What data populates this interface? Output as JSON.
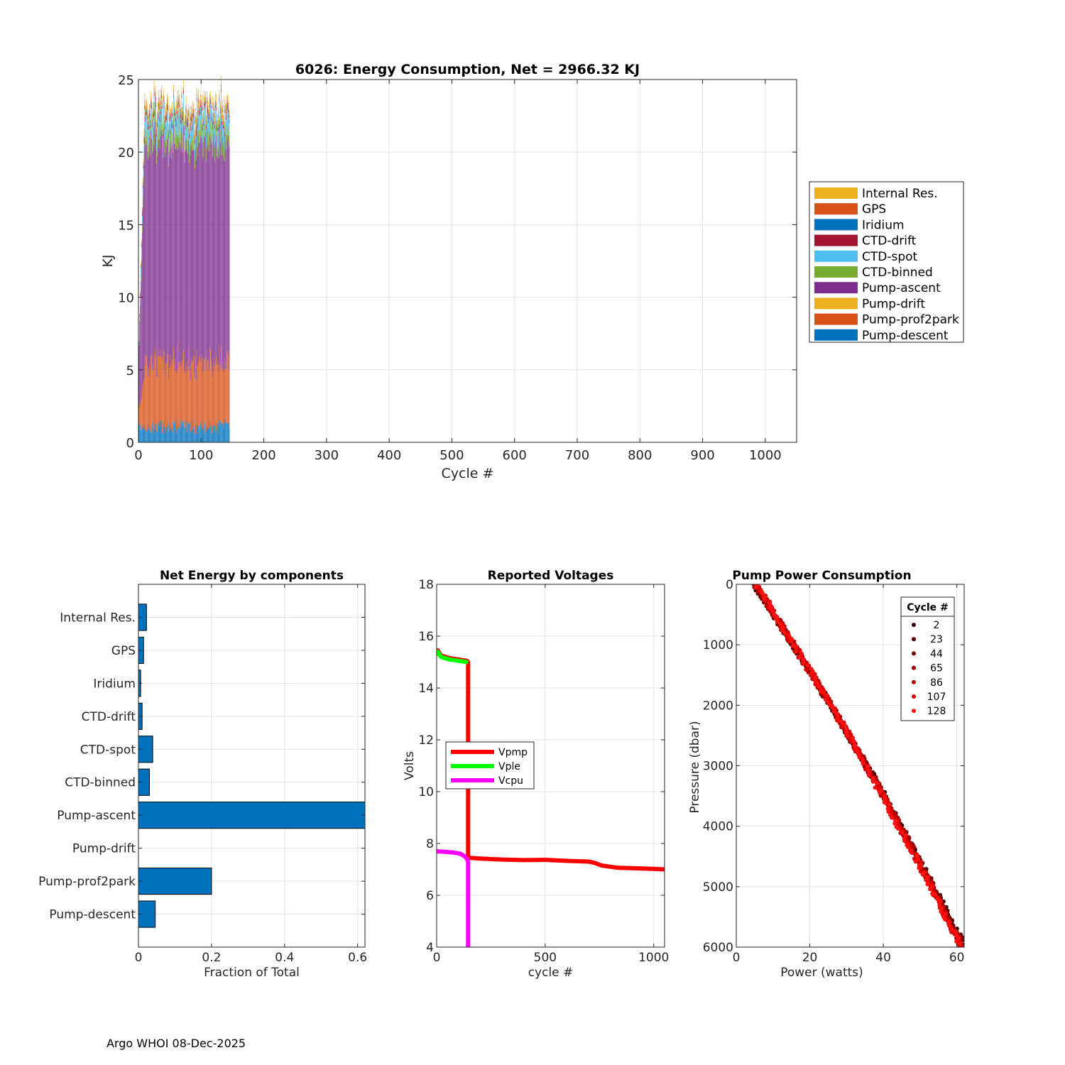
{
  "footer": "Argo WHOI 08-Dec-2025",
  "colors": {
    "blue": "#0072BD",
    "orange": "#D95319",
    "yellow": "#EDB120",
    "purple": "#7E2F8E",
    "green": "#77AC30",
    "cyan": "#4DBEEE",
    "maroon": "#A2142F",
    "vpmp": "#FF0000",
    "vple": "#00FF00",
    "vcpu": "#FF00FF"
  },
  "chart_data": [
    {
      "id": "energy",
      "type": "bar",
      "stacked": true,
      "title": "6026: Energy Consumption,  Net = 2966.32 KJ",
      "xlabel": "Cycle #",
      "ylabel": "KJ",
      "xlim": [
        0,
        1050
      ],
      "ylim": [
        0,
        25
      ],
      "xticks": [
        0,
        100,
        200,
        300,
        400,
        500,
        600,
        700,
        800,
        900,
        1000
      ],
      "yticks": [
        0,
        5,
        10,
        15,
        20,
        25
      ],
      "grid": true,
      "legend_position": "outside-right",
      "legend": [
        "Internal Res.",
        "GPS",
        "Iridium",
        "CTD-drift",
        "CTD-spot",
        "CTD-binned",
        "Pump-ascent",
        "Pump-drift",
        "Pump-prof2park",
        "Pump-descent"
      ],
      "legend_colors": [
        "#EDB120",
        "#D95319",
        "#0072BD",
        "#A2142F",
        "#4DBEEE",
        "#77AC30",
        "#7E2F8E",
        "#EDB120",
        "#D95319",
        "#0072BD"
      ],
      "cycle_range": [
        1,
        145
      ],
      "series": [
        {
          "name": "Pump-descent",
          "color": "#0072BD",
          "typical": 1.2
        },
        {
          "name": "Pump-prof2park",
          "color": "#D95319",
          "typical": 4.5
        },
        {
          "name": "Pump-drift",
          "color": "#EDB120",
          "typical": 0.0
        },
        {
          "name": "Pump-ascent",
          "color": "#7E2F8E",
          "typical": 15.0
        },
        {
          "name": "CTD-binned",
          "color": "#77AC30",
          "typical": 0.9
        },
        {
          "name": "CTD-spot",
          "color": "#4DBEEE",
          "typical": 1.0
        },
        {
          "name": "CTD-drift",
          "color": "#A2142F",
          "typical": 0.2
        },
        {
          "name": "Iridium",
          "color": "#0072BD",
          "typical": 0.1
        },
        {
          "name": "GPS",
          "color": "#D95319",
          "typical": 0.25
        },
        {
          "name": "Internal Res.",
          "color": "#EDB120",
          "typical": 0.45
        }
      ]
    },
    {
      "id": "netenergy",
      "type": "barh",
      "title": "Net Energy by components",
      "xlabel": "Fraction of Total",
      "ylabel": "",
      "xlim": [
        0,
        0.62
      ],
      "xticks": [
        0,
        0.2,
        0.4,
        0.6
      ],
      "xticklabels": [
        "0",
        "0.2",
        "0.4",
        "0.6"
      ],
      "grid": true,
      "categories": [
        "Internal Res.",
        "GPS",
        "Iridium",
        "CTD-drift",
        "CTD-spot",
        "CTD-binned",
        "Pump-ascent",
        "Pump-drift",
        "Pump-prof2park",
        "Pump-descent"
      ],
      "values": [
        0.022,
        0.014,
        0.006,
        0.01,
        0.039,
        0.03,
        0.625,
        0.0,
        0.2,
        0.046
      ],
      "bar_color": "#0072BD"
    },
    {
      "id": "voltages",
      "type": "line",
      "title": "Reported Voltages",
      "xlabel": "cycle #",
      "ylabel": "Volts",
      "xlim": [
        0,
        1050
      ],
      "ylim": [
        4,
        18
      ],
      "xticks": [
        0,
        500,
        1000
      ],
      "yticks": [
        4,
        6,
        8,
        10,
        12,
        14,
        16,
        18
      ],
      "grid": true,
      "legend_position": "middle-left",
      "series": [
        {
          "name": "Vpmp",
          "color": "#FF0000",
          "x": [
            0,
            5,
            20,
            60,
            100,
            140,
            145,
            145,
            150,
            200,
            300,
            400,
            500,
            600,
            700,
            730,
            760,
            800,
            840,
            900,
            1000,
            1050
          ],
          "y": [
            15.35,
            15.45,
            15.25,
            15.15,
            15.1,
            15.05,
            15.0,
            7.45,
            7.45,
            7.42,
            7.38,
            7.36,
            7.37,
            7.33,
            7.3,
            7.25,
            7.15,
            7.1,
            7.06,
            7.05,
            7.02,
            7.0
          ]
        },
        {
          "name": "Vple",
          "color": "#00FF00",
          "x": [
            0,
            5,
            20,
            60,
            100,
            140,
            145
          ],
          "y": [
            15.25,
            15.4,
            15.2,
            15.1,
            15.05,
            15.0,
            14.98
          ]
        },
        {
          "name": "Vcpu",
          "color": "#FF00FF",
          "x": [
            0,
            40,
            80,
            110,
            130,
            140,
            145,
            145
          ],
          "y": [
            7.7,
            7.68,
            7.65,
            7.6,
            7.5,
            7.4,
            7.3,
            4.0
          ]
        }
      ]
    },
    {
      "id": "pump",
      "type": "scatter",
      "title": "Pump Power Consumption",
      "xlabel": "Power (watts)",
      "ylabel": "Pressure (dbar)",
      "xlim": [
        0,
        62
      ],
      "ylim": [
        6000,
        0
      ],
      "xticks": [
        0,
        20,
        40,
        60
      ],
      "yticks": [
        0,
        1000,
        2000,
        3000,
        4000,
        5000,
        6000
      ],
      "grid": true,
      "legend_title": "Cycle #",
      "legend_position": "top-right",
      "series": [
        {
          "name": "2",
          "color": "#3A0000",
          "x_at_0": 4.5,
          "x_at_6000": 62.0
        },
        {
          "name": "23",
          "color": "#5A0000",
          "x_at_0": 4.6,
          "x_at_6000": 61.8
        },
        {
          "name": "44",
          "color": "#7A0000",
          "x_at_0": 4.7,
          "x_at_6000": 61.6
        },
        {
          "name": "65",
          "color": "#9A0000",
          "x_at_0": 4.8,
          "x_at_6000": 61.4
        },
        {
          "name": "86",
          "color": "#BB0000",
          "x_at_0": 4.9,
          "x_at_6000": 61.2
        },
        {
          "name": "107",
          "color": "#DD0000",
          "x_at_0": 5.0,
          "x_at_6000": 61.0
        },
        {
          "name": "128",
          "color": "#FF1010",
          "x_at_0": 5.1,
          "x_at_6000": 60.8
        }
      ]
    }
  ]
}
